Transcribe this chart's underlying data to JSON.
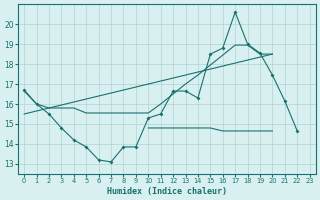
{
  "xlabel": "Humidex (Indice chaleur)",
  "x_values": [
    0,
    1,
    2,
    3,
    4,
    5,
    6,
    7,
    8,
    9,
    10,
    11,
    12,
    13,
    14,
    15,
    16,
    17,
    18,
    19,
    20,
    21,
    22,
    23
  ],
  "main_line": [
    16.7,
    16.0,
    15.5,
    14.8,
    14.2,
    13.85,
    13.2,
    13.1,
    13.85,
    13.85,
    15.3,
    15.5,
    16.65,
    16.65,
    16.3,
    18.5,
    18.8,
    20.6,
    19.0,
    18.55,
    17.45,
    16.15,
    14.65,
    null
  ],
  "upper_line": [
    16.65,
    16.0,
    15.8,
    15.8,
    15.8,
    15.55,
    15.55,
    15.55,
    15.55,
    15.55,
    15.55,
    16.0,
    16.5,
    17.0,
    17.45,
    17.95,
    18.45,
    18.95,
    18.95,
    18.5,
    18.5,
    null,
    null,
    null
  ],
  "lower_line": [
    null,
    null,
    null,
    null,
    null,
    null,
    null,
    null,
    null,
    null,
    14.8,
    14.8,
    14.8,
    14.8,
    14.8,
    14.8,
    14.65,
    14.65,
    14.65,
    14.65,
    14.65,
    null,
    null,
    null
  ],
  "trend_line_x": [
    0,
    20
  ],
  "trend_line_y": [
    15.5,
    18.5
  ],
  "line_color": "#1a7070",
  "bg_color": "#d8f0f0",
  "grid_color": "#b8d8d8",
  "ylim": [
    12.5,
    21.0
  ],
  "xlim": [
    -0.5,
    23.5
  ],
  "yticks": [
    13,
    14,
    15,
    16,
    17,
    18,
    19,
    20
  ],
  "xticks": [
    0,
    1,
    2,
    3,
    4,
    5,
    6,
    7,
    8,
    9,
    10,
    11,
    12,
    13,
    14,
    15,
    16,
    17,
    18,
    19,
    20,
    21,
    22,
    23
  ]
}
